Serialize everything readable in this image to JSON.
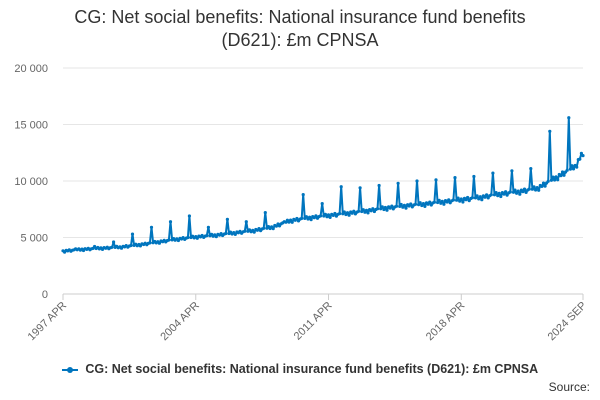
{
  "chart_data": {
    "type": "line",
    "title": "CG: Net social benefits: National insurance fund benefits (D621): £m CPNSA",
    "title_lines": [
      "CG: Net social benefits: National insurance fund benefits",
      "(D621): £m CPNSA"
    ],
    "xlabel": "",
    "ylabel": "",
    "x_start": "1997 APR",
    "x_end": "2024 SEP",
    "x_ticks": [
      "1997 APR",
      "2004 APR",
      "2011 APR",
      "2018 APR",
      "2024 SEP"
    ],
    "y_ticks": [
      "0",
      "5 000",
      "10 000",
      "15 000",
      "20 000"
    ],
    "ylim": [
      0,
      20000
    ],
    "grid": true,
    "legend_position": "bottom",
    "series": [
      {
        "name": "CG: Net social benefits: National insurance fund benefits (D621): £m CPNSA",
        "color": "#0075be",
        "anchors": [
          [
            "1997 APR",
            3800
          ],
          [
            "1998 APR",
            3950
          ],
          [
            "1999 APR",
            4050
          ],
          [
            "2000 APR",
            4150
          ],
          [
            "2001 APR",
            4350
          ],
          [
            "2002 APR",
            4600
          ],
          [
            "2003 APR",
            4850
          ],
          [
            "2004 APR",
            5050
          ],
          [
            "2005 APR",
            5200
          ],
          [
            "2006 APR",
            5400
          ],
          [
            "2007 APR",
            5600
          ],
          [
            "2008 APR",
            5900
          ],
          [
            "2009 APR",
            6500
          ],
          [
            "2010 APR",
            6750
          ],
          [
            "2011 APR",
            6950
          ],
          [
            "2012 APR",
            7150
          ],
          [
            "2013 APR",
            7350
          ],
          [
            "2014 APR",
            7600
          ],
          [
            "2015 APR",
            7800
          ],
          [
            "2016 APR",
            7950
          ],
          [
            "2017 APR",
            8150
          ],
          [
            "2018 APR",
            8350
          ],
          [
            "2019 APR",
            8550
          ],
          [
            "2020 APR",
            8850
          ],
          [
            "2021 APR",
            9050
          ],
          [
            "2022 APR",
            9350
          ],
          [
            "2023 APR",
            10300
          ],
          [
            "2024 APR",
            11300
          ],
          [
            "2024 SEP",
            12500
          ]
        ],
        "december_peaks": [
          [
            "1997 DEC",
            4000
          ],
          [
            "1998 DEC",
            4200
          ],
          [
            "1999 DEC",
            4600
          ],
          [
            "2000 DEC",
            5300
          ],
          [
            "2001 DEC",
            5900
          ],
          [
            "2002 DEC",
            6400
          ],
          [
            "2003 DEC",
            6900
          ],
          [
            "2004 DEC",
            5900
          ],
          [
            "2005 DEC",
            6600
          ],
          [
            "2006 DEC",
            6400
          ],
          [
            "2007 DEC",
            7200
          ],
          [
            "2008 DEC",
            6400
          ],
          [
            "2009 DEC",
            8800
          ],
          [
            "2010 DEC",
            8000
          ],
          [
            "2011 DEC",
            9500
          ],
          [
            "2012 DEC",
            9400
          ],
          [
            "2013 DEC",
            9600
          ],
          [
            "2014 DEC",
            9800
          ],
          [
            "2015 DEC",
            10000
          ],
          [
            "2016 DEC",
            10100
          ],
          [
            "2017 DEC",
            10300
          ],
          [
            "2018 DEC",
            10400
          ],
          [
            "2019 DEC",
            10700
          ],
          [
            "2020 DEC",
            10900
          ],
          [
            "2021 DEC",
            11100
          ],
          [
            "2022 DEC",
            14400
          ],
          [
            "2023 DEC",
            15600
          ]
        ]
      }
    ]
  },
  "source_label": "Source:"
}
